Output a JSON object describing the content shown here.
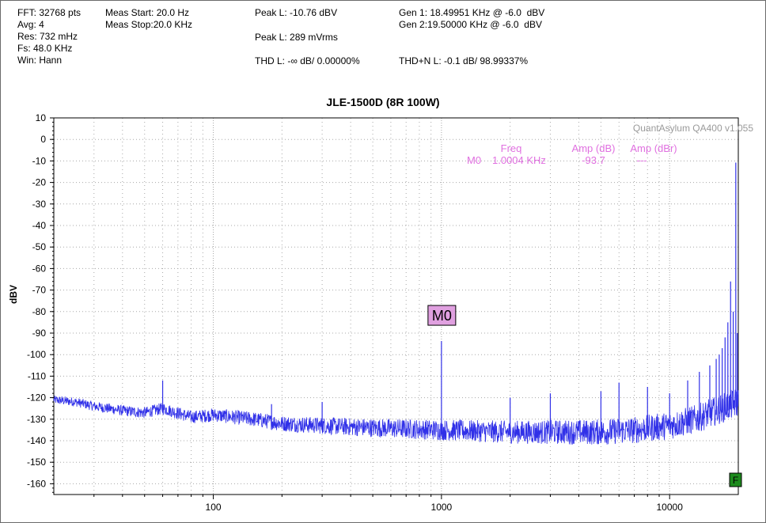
{
  "header": {
    "fft": "FFT: 32768 pts",
    "avg": "Avg: 4",
    "res": "Res: 732 mHz",
    "fs": "Fs: 48.0 KHz",
    "win": "Win: Hann",
    "meas_start": "Meas Start: 20.0 Hz",
    "meas_stop": "Meas Stop:20.0 KHz",
    "peak_dbv": "Peak L: -10.76 dBV",
    "peak_vrms": "Peak L: 289 mVrms",
    "thd": "THD L: -∞ dB/ 0.00000%",
    "gen1": "Gen 1: 18.49951 KHz @ -6.0  dBV",
    "gen2": "Gen 2:19.50000 KHz @ -6.0  dBV",
    "thdn": "THD+N L: -0.1 dB/ 98.99337%"
  },
  "chart_data": {
    "type": "line",
    "title": "JLE-1500D (8R 100W)",
    "ylabel": "dBV",
    "xlabel": "",
    "x_scale": "log",
    "xlim": [
      20,
      20000
    ],
    "ylim": [
      -165,
      10
    ],
    "grid": true,
    "watermark": "QuantAsylum QA400 v1.055",
    "x_ticks": [
      100,
      1000,
      10000
    ],
    "x_tick_labels": [
      "100",
      "1000",
      "10000"
    ],
    "y_ticks": [
      10,
      0,
      -10,
      -20,
      -30,
      -40,
      -50,
      -60,
      -70,
      -80,
      -90,
      -100,
      -110,
      -120,
      -130,
      -140,
      -150,
      -160
    ],
    "y_tick_labels": [
      "10",
      "0",
      "-10",
      "-20",
      "-30",
      "-40",
      "-50",
      "-60",
      "-70",
      "-80",
      "-90",
      "-100",
      "-110",
      "-120",
      "-130",
      "-140",
      "-150",
      "-160"
    ],
    "series": [
      {
        "color": "#3030e8",
        "floor": [
          [
            20,
            -121
          ],
          [
            25,
            -122
          ],
          [
            30,
            -124
          ],
          [
            40,
            -126
          ],
          [
            50,
            -127
          ],
          [
            60,
            -125
          ],
          [
            80,
            -129
          ],
          [
            100,
            -128
          ],
          [
            150,
            -130
          ],
          [
            200,
            -132
          ],
          [
            300,
            -133
          ],
          [
            500,
            -134
          ],
          [
            1000,
            -135
          ],
          [
            2000,
            -136
          ],
          [
            3000,
            -136
          ],
          [
            5000,
            -136
          ],
          [
            7000,
            -135
          ],
          [
            10000,
            -133
          ],
          [
            13000,
            -130
          ],
          [
            16000,
            -126
          ],
          [
            19000,
            -123
          ],
          [
            20000,
            -122
          ]
        ],
        "peaks": [
          [
            60,
            -112
          ],
          [
            180,
            -123
          ],
          [
            300,
            -122
          ],
          [
            1000,
            -93.7
          ],
          [
            2000,
            -120
          ],
          [
            3000,
            -118
          ],
          [
            5000,
            -117
          ],
          [
            6000,
            -113
          ],
          [
            8000,
            -115
          ],
          [
            10000,
            -118
          ],
          [
            12000,
            -112
          ],
          [
            13500,
            -108
          ],
          [
            15000,
            -105
          ],
          [
            16000,
            -102
          ],
          [
            16500,
            -100
          ],
          [
            17000,
            -97
          ],
          [
            17500,
            -92
          ],
          [
            18000,
            -85
          ],
          [
            18500,
            -66
          ],
          [
            19000,
            -80
          ],
          [
            19500,
            -10.76
          ],
          [
            19800,
            -90
          ]
        ]
      }
    ],
    "marker": {
      "label": "M0",
      "freq": "1.0004 KHz",
      "amp_db": "-93.7",
      "amp_dbr": "---",
      "x": 1000,
      "y": -93.7,
      "col_freq": "Freq",
      "col_amp": "Amp (dB)",
      "col_ampr": "Amp (dBr)"
    },
    "flag": "F",
    "marker_color": "#e0a0e0"
  }
}
